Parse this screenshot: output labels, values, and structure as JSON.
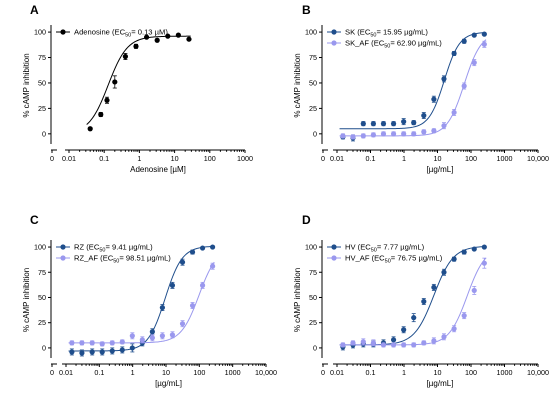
{
  "chart_data": [
    {
      "type": "scatter",
      "panel": "A",
      "xscale": "log",
      "xlim": [
        0.01,
        1000
      ],
      "xticks": [
        "0",
        "0.01",
        "0.1",
        "1",
        "10",
        "100",
        "1000"
      ],
      "ylim": [
        -10,
        105
      ],
      "yticks": [
        "0",
        "25",
        "50",
        "75",
        "100"
      ],
      "xlabel": "Adenosine [µM]",
      "ylabel": "% cAMP inhibition",
      "legend_position": "top-left",
      "series": [
        {
          "name": "Adenosine (EC",
          "name_sub": "50",
          "name_tail": "= 0.13 µM)",
          "color": "#000000",
          "x": [
            0.04,
            0.08,
            0.12,
            0.2,
            0.4,
            0.8,
            1.6,
            3.2,
            6.4,
            12.8,
            25.6
          ],
          "y": [
            5,
            19,
            33,
            51,
            76,
            86,
            95,
            92,
            96,
            97,
            93
          ],
          "err": [
            1,
            2,
            3,
            6,
            3,
            2,
            1,
            1,
            1,
            1,
            1
          ],
          "ec50": 0.13,
          "bottom": 0,
          "top": 96,
          "hill": 1.6
        }
      ]
    },
    {
      "type": "scatter",
      "panel": "B",
      "xscale": "log",
      "xlim": [
        0.01,
        10000
      ],
      "xticks": [
        "0",
        "0.01",
        "0.1",
        "1",
        "10",
        "100",
        "1000",
        "10,000"
      ],
      "ylim": [
        -10,
        105
      ],
      "yticks": [
        "0",
        "25",
        "50",
        "75",
        "100"
      ],
      "xlabel": "[µg/mL]",
      "ylabel": "% cAMP inhibition",
      "legend_position": "top-left",
      "series": [
        {
          "name": "SK (EC",
          "name_sub": "50",
          "name_tail": "= 15.95 µg/mL)",
          "color": "#1f4e8c",
          "x": [
            0.015,
            0.03,
            0.061,
            0.122,
            0.244,
            0.488,
            0.977,
            1.95,
            3.9,
            7.8,
            15.6,
            31.3,
            62.5,
            125,
            250
          ],
          "y": [
            -3,
            -4,
            10,
            10,
            10,
            10,
            12,
            11,
            18,
            34,
            54,
            79,
            91,
            97,
            98
          ],
          "err": [
            2,
            3,
            2,
            2,
            2,
            2,
            3,
            2,
            3,
            3,
            3,
            2,
            2,
            1,
            1
          ],
          "ec50": 15.95,
          "bottom": 5,
          "top": 100,
          "hill": 1.9
        },
        {
          "name": "SK_AF (EC",
          "name_sub": "50",
          "name_tail": "= 62.90 µg/mL)",
          "color": "#9a98ee",
          "x": [
            0.015,
            0.03,
            0.061,
            0.122,
            0.244,
            0.488,
            0.977,
            1.95,
            3.9,
            7.8,
            15.6,
            31.3,
            62.5,
            125,
            250
          ],
          "y": [
            -2,
            -3,
            -2,
            -1,
            0,
            0,
            0,
            0,
            2,
            3,
            8,
            21,
            47,
            70,
            88
          ],
          "err": [
            2,
            2,
            2,
            2,
            2,
            2,
            2,
            2,
            2,
            2,
            3,
            3,
            3,
            3,
            3
          ],
          "ec50": 62.9,
          "bottom": -2,
          "top": 100,
          "hill": 1.7
        }
      ]
    },
    {
      "type": "scatter",
      "panel": "C",
      "xscale": "log",
      "xlim": [
        0.01,
        10000
      ],
      "xticks": [
        "0",
        "0.01",
        "0.1",
        "1",
        "10",
        "100",
        "1000",
        "10,000"
      ],
      "ylim": [
        -10,
        105
      ],
      "yticks": [
        "0",
        "25",
        "50",
        "75",
        "100"
      ],
      "xlabel": "[µg/mL]",
      "ylabel": "% cAMP inhibition",
      "legend_position": "top-left",
      "series": [
        {
          "name": "RZ (EC",
          "name_sub": "50",
          "name_tail": "= 9.41 µg/mL)",
          "color": "#1f4e8c",
          "x": [
            0.015,
            0.03,
            0.061,
            0.122,
            0.244,
            0.488,
            0.977,
            1.95,
            3.9,
            7.8,
            15.6,
            31.3,
            62.5,
            125,
            250
          ],
          "y": [
            -4,
            -5,
            -4,
            -4,
            -3,
            -2,
            0,
            5,
            16,
            40,
            62,
            85,
            95,
            99,
            100
          ],
          "err": [
            3,
            3,
            3,
            3,
            3,
            3,
            4,
            3,
            3,
            3,
            3,
            3,
            2,
            1,
            1
          ],
          "ec50": 9.41,
          "bottom": -3,
          "top": 101,
          "hill": 1.7
        },
        {
          "name": "RZ_AF (EC",
          "name_sub": "50",
          "name_tail": "= 98.51 µg/mL)",
          "color": "#9a98ee",
          "x": [
            0.015,
            0.03,
            0.061,
            0.122,
            0.244,
            0.488,
            0.977,
            1.95,
            3.9,
            7.8,
            15.6,
            31.3,
            62.5,
            125,
            250
          ],
          "y": [
            5,
            5,
            5,
            4,
            5,
            6,
            12,
            8,
            10,
            12,
            13,
            24,
            42,
            62,
            81
          ],
          "err": [
            2,
            2,
            2,
            2,
            2,
            2,
            3,
            3,
            3,
            3,
            3,
            3,
            3,
            3,
            3
          ],
          "ec50": 98.51,
          "bottom": 5,
          "top": 100,
          "hill": 1.6
        }
      ]
    },
    {
      "type": "scatter",
      "panel": "D",
      "xscale": "log",
      "xlim": [
        0.01,
        10000
      ],
      "xticks": [
        "0",
        "0.01",
        "0.1",
        "1",
        "10",
        "100",
        "1000",
        "10,000"
      ],
      "ylim": [
        -10,
        105
      ],
      "yticks": [
        "0",
        "25",
        "50",
        "75",
        "100"
      ],
      "xlabel": "[µg/mL]",
      "ylabel": "% cAMP inhibition",
      "legend_position": "top-left",
      "series": [
        {
          "name": "HV (EC",
          "name_sub": "50",
          "name_tail": "= 7.77  µg/mL)",
          "color": "#1f4e8c",
          "x": [
            0.015,
            0.03,
            0.061,
            0.122,
            0.244,
            0.488,
            0.977,
            1.95,
            3.9,
            7.8,
            15.6,
            31.3,
            62.5,
            125,
            250
          ],
          "y": [
            1,
            3,
            4,
            4,
            5,
            8,
            18,
            30,
            46,
            60,
            75,
            88,
            95,
            98,
            100
          ],
          "err": [
            3,
            3,
            3,
            3,
            3,
            3,
            3,
            4,
            3,
            3,
            3,
            2,
            2,
            1,
            1
          ],
          "ec50": 7.77,
          "bottom": 3,
          "top": 101,
          "hill": 1.5
        },
        {
          "name": "HV_AF (EC",
          "name_sub": "50",
          "name_tail": "= 76.75  µg/mL)",
          "color": "#9a98ee",
          "x": [
            0.015,
            0.03,
            0.061,
            0.122,
            0.244,
            0.488,
            0.977,
            1.95,
            3.9,
            7.8,
            15.6,
            31.3,
            62.5,
            125,
            250
          ],
          "y": [
            3,
            5,
            6,
            5,
            3,
            3,
            3,
            3,
            5,
            7,
            11,
            19,
            32,
            57,
            84
          ],
          "err": [
            2,
            2,
            3,
            3,
            2,
            2,
            2,
            2,
            2,
            3,
            3,
            3,
            3,
            4,
            5
          ],
          "ec50": 76.75,
          "bottom": 3,
          "top": 100,
          "hill": 1.6
        }
      ]
    }
  ]
}
